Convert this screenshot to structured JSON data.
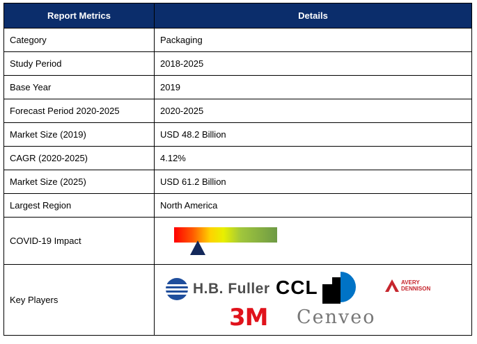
{
  "table": {
    "headers": [
      "Report Metrics",
      "Details"
    ],
    "rows": [
      {
        "metric": "Category",
        "detail": "Packaging"
      },
      {
        "metric": "Study Period",
        "detail": "2018-2025"
      },
      {
        "metric": "Base Year",
        "detail": "2019"
      },
      {
        "metric": "Forecast Period 2020-2025",
        "detail": "2020-2025"
      },
      {
        "metric": "Market Size (2019)",
        "detail": "USD 48.2 Billion"
      },
      {
        "metric": "CAGR (2020-2025)",
        "detail": "4.12%"
      },
      {
        "metric": "Market Size (2025)",
        "detail": "USD 61.2 Billion"
      },
      {
        "metric": "Largest Region",
        "detail": "North America"
      }
    ],
    "covid": {
      "metric": "COVID-19 Impact",
      "gauge_level": 0.23,
      "gauge_colors": [
        "#ff0000",
        "#ffd200",
        "#6e9a45"
      ],
      "marker_color": "#13285a"
    },
    "players": {
      "metric": "Key Players",
      "logos": [
        {
          "name": "H.B. Fuller",
          "icon": "hb-fuller-logo",
          "color": "#1f4e9c"
        },
        {
          "name": "CCL",
          "icon": "ccl-logo",
          "color": "#0073c6"
        },
        {
          "name": "AVERY DENNISON",
          "icon": "avery-dennison-logo",
          "color": "#c6262e"
        },
        {
          "name": "3M",
          "icon": "3m-logo",
          "color": "#e0121b"
        },
        {
          "name": "Cenveo",
          "icon": "cenveo-logo",
          "color": "#777777"
        }
      ]
    }
  },
  "colors": {
    "header_bg": "#0b2d6b",
    "header_text": "#ffffff"
  }
}
